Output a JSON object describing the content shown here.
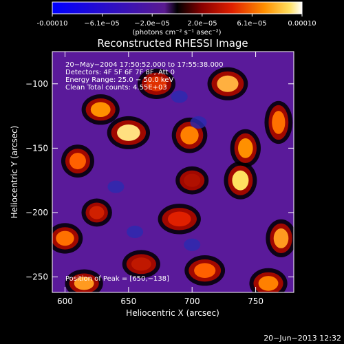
{
  "colorbar": {
    "tick_labels": [
      "-0.00010",
      "−6.1e−05",
      "−2.0e−05",
      "2.0e−05",
      "6.1e−05",
      "0.00010"
    ],
    "units_label": "(photons cm⁻² s⁻¹ asec⁻²)",
    "colors": [
      "#0000ff",
      "#3000c0",
      "#6a20a8",
      "#000000",
      "#8a0000",
      "#e02000",
      "#ff8000",
      "#ffd000",
      "#ffffff"
    ]
  },
  "chart_data": {
    "type": "heatmap",
    "title": "Reconstructed RHESSI Image",
    "xlabel": "Heliocentric X (arcsec)",
    "ylabel": "Heliocentric Y (arcsec)",
    "xlim": [
      590,
      780
    ],
    "ylim": [
      -262,
      -75
    ],
    "x_ticks": [
      600,
      650,
      700,
      750
    ],
    "y_ticks": [
      -100,
      -150,
      -200,
      -250
    ],
    "annotations": [
      "20−May−2004 17:50:52.000 to 17:55:38.000",
      "Detectors: 4F 5F 6F 7F 8F, Att 0",
      "Energy Range: 25.0 − 50.0 keV",
      "Clean    Total counts: 4.55E+03"
    ],
    "peak_label": "Position of Peak = [650,−138]",
    "peak": [
      650,
      -138
    ]
  },
  "footer": {
    "timestamp": "20−Jun−2013 12:32"
  }
}
